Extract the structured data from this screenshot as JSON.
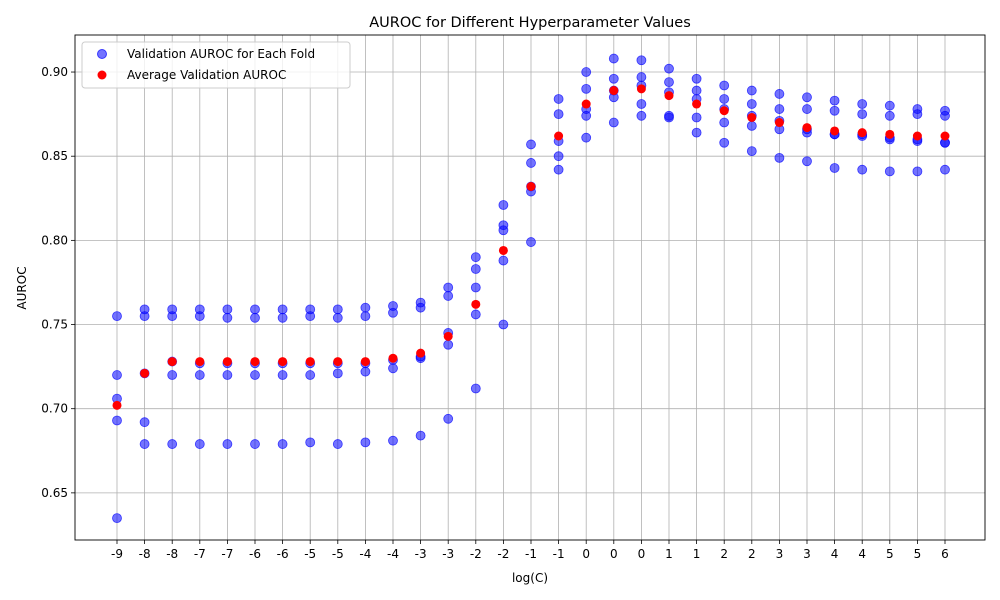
{
  "chart_data": {
    "type": "scatter",
    "title": "AUROC for Different Hyperparameter Values",
    "xlabel": "log(C)",
    "ylabel": "AUROC",
    "ylim": [
      0.622,
      0.922
    ],
    "yticks": [
      "0.65",
      "0.70",
      "0.75",
      "0.80",
      "0.85",
      "0.90"
    ],
    "ytick_values": [
      0.65,
      0.7,
      0.75,
      0.8,
      0.85,
      0.9
    ],
    "categories": [
      "-9",
      "-8",
      "-8",
      "-7",
      "-7",
      "-6",
      "-6",
      "-5",
      "-5",
      "-4",
      "-4",
      "-3",
      "-3",
      "-2",
      "-2",
      "-1",
      "-1",
      "0",
      "0",
      "0",
      "1",
      "1",
      "2",
      "2",
      "3",
      "3",
      "4",
      "4",
      "5",
      "5",
      "6"
    ],
    "grid": true,
    "legend_position": "top-left",
    "colors": {
      "fold": "#0000ff",
      "average": "#ff0000"
    },
    "series": [
      {
        "name": "Validation AUROC for Each Fold",
        "color": "#0000ff",
        "points": [
          [
            0.755,
            0.72,
            0.706,
            0.693,
            0.635
          ],
          [
            0.759,
            0.755,
            0.721,
            0.692,
            0.679
          ],
          [
            0.759,
            0.755,
            0.72,
            0.728,
            0.679
          ],
          [
            0.759,
            0.755,
            0.72,
            0.727,
            0.679
          ],
          [
            0.759,
            0.754,
            0.72,
            0.727,
            0.679
          ],
          [
            0.759,
            0.754,
            0.72,
            0.727,
            0.679
          ],
          [
            0.759,
            0.754,
            0.72,
            0.727,
            0.679
          ],
          [
            0.759,
            0.755,
            0.72,
            0.727,
            0.68
          ],
          [
            0.759,
            0.754,
            0.721,
            0.727,
            0.679
          ],
          [
            0.76,
            0.755,
            0.722,
            0.727,
            0.68
          ],
          [
            0.761,
            0.757,
            0.724,
            0.729,
            0.681
          ],
          [
            0.763,
            0.76,
            0.731,
            0.73,
            0.684
          ],
          [
            0.772,
            0.767,
            0.745,
            0.738,
            0.694
          ],
          [
            0.79,
            0.783,
            0.772,
            0.756,
            0.712
          ],
          [
            0.821,
            0.809,
            0.806,
            0.788,
            0.75
          ],
          [
            0.857,
            0.846,
            0.832,
            0.829,
            0.799
          ],
          [
            0.884,
            0.875,
            0.859,
            0.85,
            0.842
          ],
          [
            0.9,
            0.89,
            0.878,
            0.874,
            0.861
          ],
          [
            0.908,
            0.896,
            0.885,
            0.87,
            0.889
          ],
          [
            0.907,
            0.897,
            0.881,
            0.874,
            0.892
          ],
          [
            0.902,
            0.894,
            0.888,
            0.874,
            0.873
          ],
          [
            0.896,
            0.889,
            0.884,
            0.873,
            0.864
          ],
          [
            0.892,
            0.884,
            0.878,
            0.87,
            0.858
          ],
          [
            0.889,
            0.881,
            0.874,
            0.868,
            0.853
          ],
          [
            0.887,
            0.878,
            0.871,
            0.866,
            0.849
          ],
          [
            0.885,
            0.878,
            0.866,
            0.864,
            0.847
          ],
          [
            0.883,
            0.877,
            0.863,
            0.863,
            0.843
          ],
          [
            0.881,
            0.875,
            0.863,
            0.862,
            0.842
          ],
          [
            0.88,
            0.874,
            0.861,
            0.86,
            0.841
          ],
          [
            0.878,
            0.875,
            0.86,
            0.859,
            0.841
          ],
          [
            0.877,
            0.874,
            0.858,
            0.858,
            0.842
          ]
        ]
      },
      {
        "name": "Average Validation AUROC",
        "color": "#ff0000",
        "values": [
          0.702,
          0.721,
          0.728,
          0.728,
          0.728,
          0.728,
          0.728,
          0.728,
          0.728,
          0.728,
          0.73,
          0.733,
          0.743,
          0.762,
          0.794,
          0.832,
          0.862,
          0.881,
          0.889,
          0.89,
          0.886,
          0.881,
          0.877,
          0.873,
          0.87,
          0.867,
          0.865,
          0.864,
          0.863,
          0.862,
          0.862
        ]
      }
    ]
  }
}
